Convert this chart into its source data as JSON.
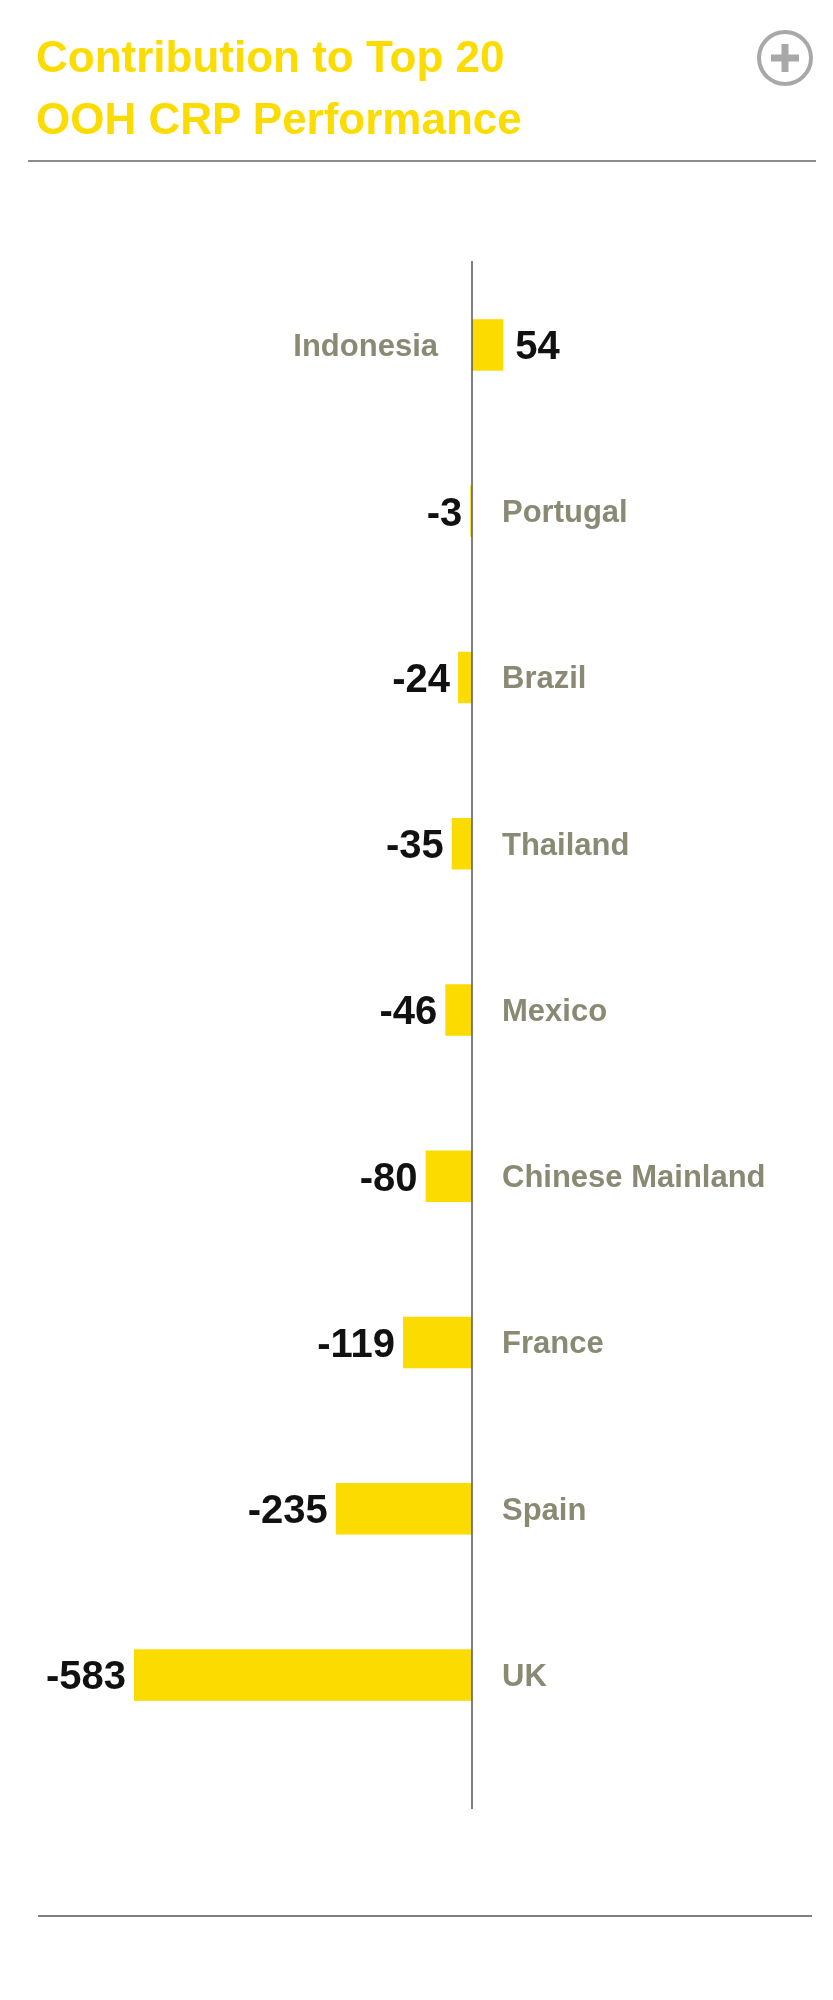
{
  "chart_data": {
    "type": "bar",
    "orientation": "horizontal",
    "title": "Contribution to Top 20\nOOH CRP Performance",
    "categories": [
      "Indonesia",
      "Portugal",
      "Brazil",
      "Thailand",
      "Mexico",
      "Chinese Mainland",
      "France",
      "Spain",
      "UK"
    ],
    "values": [
      54,
      -3,
      -24,
      -35,
      -46,
      -80,
      -119,
      -235,
      -583
    ],
    "color": "#fcdc00",
    "data_labels": true
  }
}
